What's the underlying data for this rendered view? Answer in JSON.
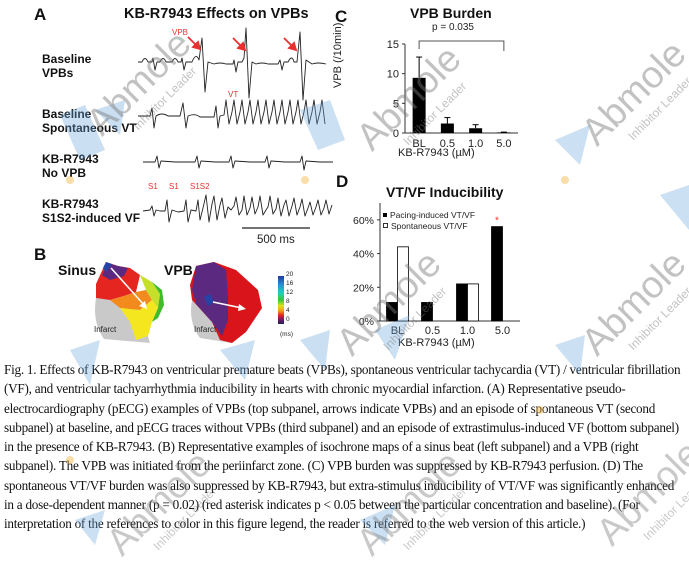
{
  "figure": {
    "panel_a": {
      "letter": "A",
      "title": "KB-R7943 Effects on VPBs",
      "traces": [
        {
          "label_line1": "Baseline",
          "label_line2": "VPBs"
        },
        {
          "label_line1": "Baseline",
          "label_line2": "Spontaneous VT"
        },
        {
          "label_line1": "KB-R7943",
          "label_line2": "No VPB"
        },
        {
          "label_line1": "KB-R7943",
          "label_line2": "S1S2-induced VF"
        }
      ],
      "annotations": {
        "vpb": "VPB",
        "vt": "VT",
        "s1_a": "S1",
        "s1_b": "S1",
        "s1s2": "S1S2"
      },
      "scale_bar": "500 ms",
      "annotation_color": "#e8312f"
    },
    "panel_b": {
      "letter": "B",
      "sinus_label": "Sinus",
      "vpb_label": "VPB",
      "infarct_label_left": "Infarct",
      "infarct_label_right": "Infarct",
      "colorbar_ticks": [
        "20",
        "16",
        "12",
        "8",
        "4",
        "0"
      ],
      "colorbar_unit": "(ms)"
    },
    "panel_c": {
      "letter": "C"
    },
    "panel_d": {
      "letter": "D"
    }
  },
  "chart_data": [
    {
      "type": "bar",
      "title": "VPB Burden",
      "xlabel": "KB-R7943 (µM)",
      "ylabel": "VPB (/10min)",
      "categories": [
        "BL",
        "0.5",
        "1.0",
        "5.0"
      ],
      "values": [
        9.3,
        1.6,
        0.8,
        0.1
      ],
      "error_upper": [
        12.8,
        2.6,
        1.4,
        0.15
      ],
      "ylim": [
        0,
        15
      ],
      "yticks": [
        "0",
        "5",
        "10",
        "15"
      ],
      "annotation": "p = 0.035",
      "grid": false
    },
    {
      "type": "bar",
      "title": "VT/VF Inducibility",
      "xlabel": "KB-R7943 (µM)",
      "ylabel": "",
      "categories": [
        "BL",
        "0.5",
        "1.0",
        "5.0"
      ],
      "series": [
        {
          "name": "Pacing-induced VT/VF",
          "values": [
            11,
            11,
            22,
            56
          ],
          "fill": "#000000"
        },
        {
          "name": "Spontaneous VT/VF",
          "values": [
            44,
            0,
            22,
            0
          ],
          "fill": "#ffffff"
        }
      ],
      "ylim": [
        0,
        70
      ],
      "yticks": [
        "0%",
        "20%",
        "40%",
        "60%"
      ],
      "legend": "top-left",
      "significance_marker": {
        "category": "5.0",
        "symbol": "*",
        "color": "#e8312f"
      },
      "grid": false
    }
  ],
  "caption": {
    "text": "Fig. 1. Effects of KB-R7943 on ventricular premature beats (VPBs), spontaneous ventricular tachycardia (VT) / ventricular fibrillation (VF), and ventricular tachyarrhythmia inducibility in hearts with chronic myocardial infarction. (A) Representative pseudo-electrocardiography (pECG) examples of VPBs (top subpanel, arrows indicate VPBs) and an episode of spontaneous VT (second subpanel) at baseline, and pECG traces without VPBs (third subpanel) and an episode of extrastimulus-induced VF (bottom subpanel) in the presence of KB-R7943. (B) Representative examples of isochrone maps of a sinus beat (left subpanel) and a VPB (right subpanel). The VPB was initiated from the periinfarct zone. (C) VPB burden was suppressed by KB-R7943 perfusion. (D) The spontaneous VT/VF burden was also suppressed by KB-R7943, but extra-stimulus inducibility of VT/VF was significantly enhanced in a dose-dependent manner (p = 0.02) (red asterisk indicates p < 0.05 between the particular concentration and baseline). (For interpretation of the references to color in this figure legend, the reader is referred to the web version of this article.)"
  },
  "watermark": {
    "brand": "Abmole",
    "tagline": "Inhibitor Leader"
  }
}
